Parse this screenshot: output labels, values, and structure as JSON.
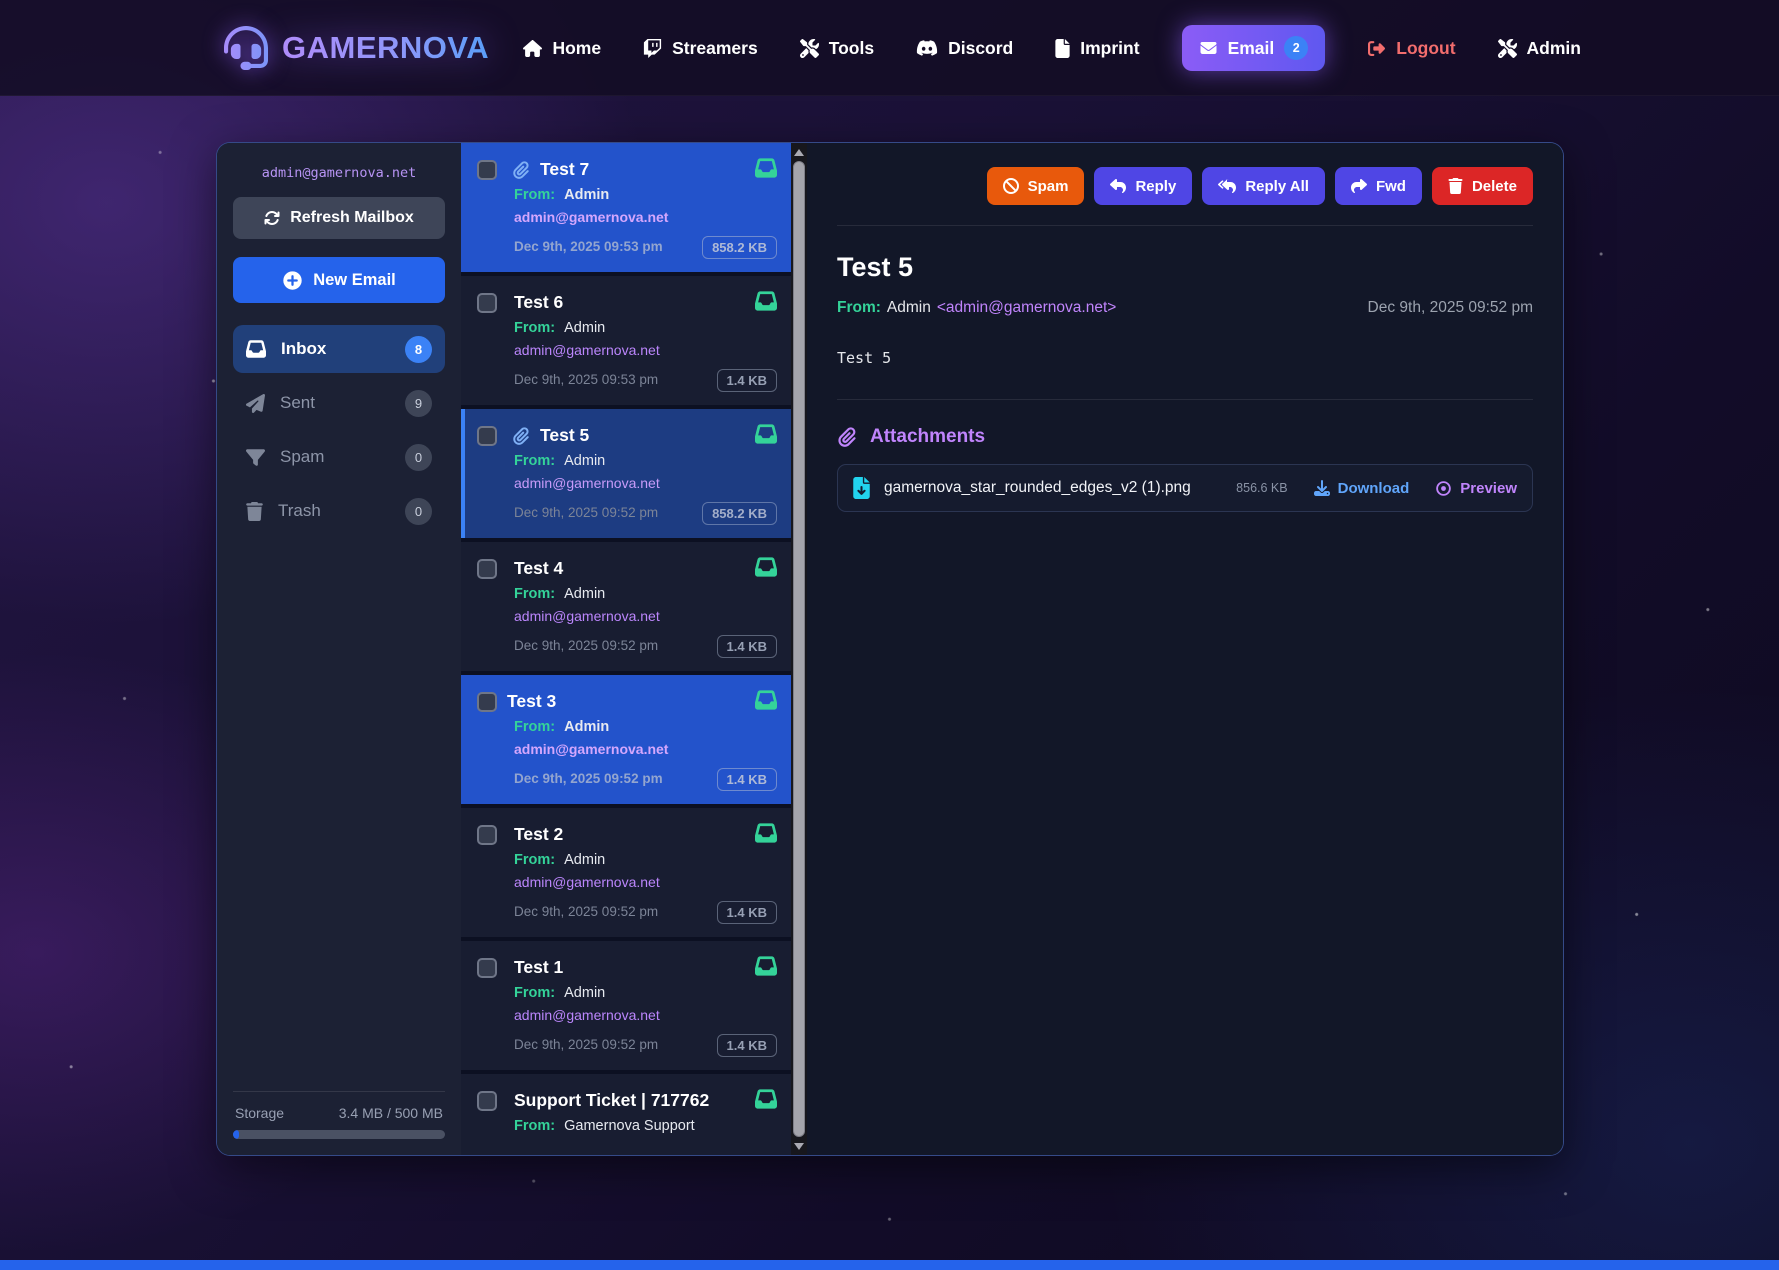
{
  "navbar": {
    "brand": "GAMERNOVA",
    "brand_icon": "headset-icon",
    "items": [
      {
        "label": "Home",
        "icon": "home-icon"
      },
      {
        "label": "Streamers",
        "icon": "twitch-icon"
      },
      {
        "label": "Tools",
        "icon": "wrench-screwdriver-icon"
      },
      {
        "label": "Discord",
        "icon": "discord-icon"
      },
      {
        "label": "Imprint",
        "icon": "document-icon"
      }
    ],
    "email_button": {
      "label": "Email",
      "badge": "2",
      "icon": "envelope-icon"
    },
    "logout_label": "Logout",
    "admin_label": "Admin"
  },
  "sidebar": {
    "account_email": "admin@gamernova.net",
    "refresh_button": "Refresh Mailbox",
    "new_email_button": "New Email",
    "folders": [
      {
        "label": "Inbox",
        "count": "8",
        "icon": "inbox-icon",
        "active": true
      },
      {
        "label": "Sent",
        "count": "9",
        "icon": "paper-plane-icon",
        "active": false
      },
      {
        "label": "Spam",
        "count": "0",
        "icon": "filter-icon",
        "active": false
      },
      {
        "label": "Trash",
        "count": "0",
        "icon": "trash-icon",
        "active": false
      }
    ],
    "storage": {
      "label": "Storage",
      "value": "3.4 MB / 500 MB",
      "used_percent": 3
    }
  },
  "email_list": {
    "items": [
      {
        "subject": "Test 7",
        "from_label": "From:",
        "from": "Admin",
        "email": "admin@gamernova.net",
        "date": "Dec 9th, 2025 09:53 pm",
        "size": "858.2 KB",
        "has_attachment": true,
        "state": "unread"
      },
      {
        "subject": "Test 6",
        "from_label": "From:",
        "from": "Admin",
        "email": "admin@gamernova.net",
        "date": "Dec 9th, 2025 09:53 pm",
        "size": "1.4 KB",
        "has_attachment": false,
        "state": "read"
      },
      {
        "subject": "Test 5",
        "from_label": "From:",
        "from": "Admin",
        "email": "admin@gamernova.net",
        "date": "Dec 9th, 2025 09:52 pm",
        "size": "858.2 KB",
        "has_attachment": true,
        "state": "active"
      },
      {
        "subject": "Test 4",
        "from_label": "From:",
        "from": "Admin",
        "email": "admin@gamernova.net",
        "date": "Dec 9th, 2025 09:52 pm",
        "size": "1.4 KB",
        "has_attachment": false,
        "state": "read"
      },
      {
        "subject": "Test 3",
        "from_label": "From:",
        "from": "Admin",
        "email": "admin@gamernova.net",
        "date": "Dec 9th, 2025 09:52 pm",
        "size": "1.4 KB",
        "has_attachment": false,
        "state": "unread"
      },
      {
        "subject": "Test 2",
        "from_label": "From:",
        "from": "Admin",
        "email": "admin@gamernova.net",
        "date": "Dec 9th, 2025 09:52 pm",
        "size": "1.4 KB",
        "has_attachment": false,
        "state": "read"
      },
      {
        "subject": "Test 1",
        "from_label": "From:",
        "from": "Admin",
        "email": "admin@gamernova.net",
        "date": "Dec 9th, 2025 09:52 pm",
        "size": "1.4 KB",
        "has_attachment": false,
        "state": "read"
      },
      {
        "subject": "Support Ticket | 717762",
        "from_label": "From:",
        "from": "Gamernova Support",
        "email": "",
        "date": "",
        "size": "",
        "has_attachment": false,
        "state": "read"
      }
    ]
  },
  "reader": {
    "toolbar": [
      {
        "label": "Spam",
        "icon": "ban-icon",
        "color": "#e8590c"
      },
      {
        "label": "Reply",
        "icon": "reply-icon",
        "color": "#4f46e5"
      },
      {
        "label": "Reply All",
        "icon": "reply-all-icon",
        "color": "#4f46e5"
      },
      {
        "label": "Fwd",
        "icon": "forward-icon",
        "color": "#4f46e5"
      },
      {
        "label": "Delete",
        "icon": "trash-icon",
        "color": "#dc2626"
      }
    ],
    "subject": "Test 5",
    "from_label": "From:",
    "from_name": "Admin",
    "from_address": "<admin@gamernova.net>",
    "date": "Dec 9th, 2025 09:52 pm",
    "body": "Test 5",
    "attachments_title": "Attachments",
    "attachments": [
      {
        "name": "gamernova_star_rounded_edges_v2 (1).png",
        "size": "856.6 KB",
        "download_label": "Download",
        "preview_label": "Preview",
        "icon": "file-download-icon"
      }
    ]
  },
  "colors": {
    "accent_blue": "#2563eb",
    "unread_blue": "#2353cb",
    "active_blue": "#1d3c82",
    "purple": "#c084fc",
    "green": "#34d399",
    "orange": "#e8590c",
    "indigo": "#4f46e5",
    "red": "#dc2626",
    "cyan": "#22d3ee",
    "logout_red": "#f26d6d"
  }
}
